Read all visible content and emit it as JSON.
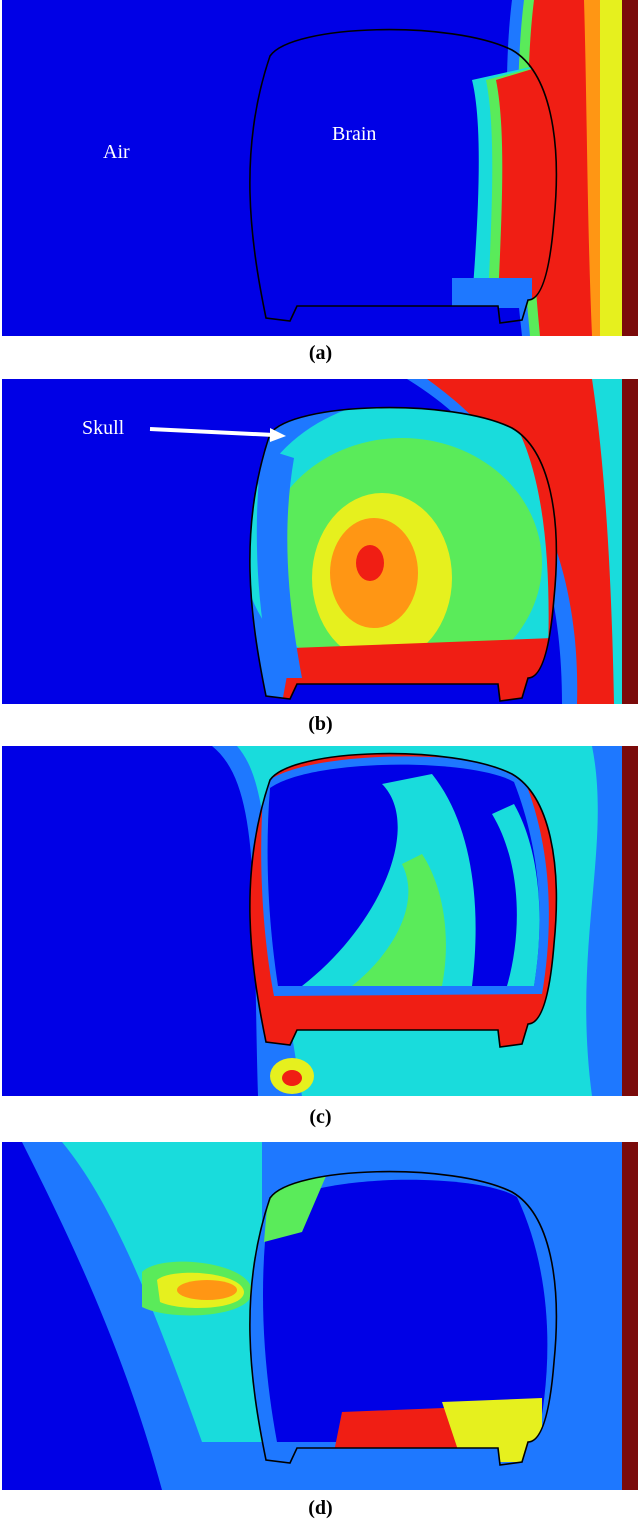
{
  "panels": [
    {
      "caption": "(a)",
      "labels": {
        "air": "Air",
        "brain": "Brain"
      }
    },
    {
      "caption": "(b)",
      "labels": {
        "skull": "Skull"
      }
    },
    {
      "caption": "(c)"
    },
    {
      "caption": "(d)"
    }
  ],
  "colors": {
    "blue": "#0000e6",
    "light_blue": "#1e78ff",
    "cyan": "#19dcdc",
    "green": "#5aeb5a",
    "yellow": "#e6f01e",
    "orange": "#ff9614",
    "red": "#f01e14",
    "dark_red": "#7a0a0a",
    "outline": "#000000"
  }
}
